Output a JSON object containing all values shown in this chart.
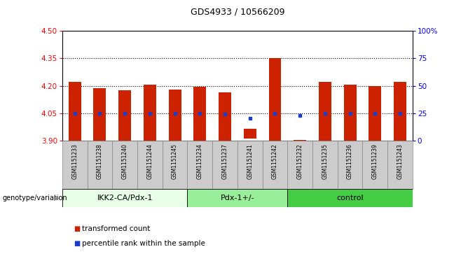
{
  "title": "GDS4933 / 10566209",
  "samples": [
    "GSM1151233",
    "GSM1151238",
    "GSM1151240",
    "GSM1151244",
    "GSM1151245",
    "GSM1151234",
    "GSM1151237",
    "GSM1151241",
    "GSM1151242",
    "GSM1151232",
    "GSM1151235",
    "GSM1151236",
    "GSM1151239",
    "GSM1151243"
  ],
  "bar_bottoms": [
    3.9,
    3.9,
    3.9,
    3.9,
    3.9,
    3.9,
    3.9,
    3.915,
    3.9,
    3.902,
    3.9,
    3.9,
    3.9,
    3.9
  ],
  "bar_tops": [
    4.22,
    4.185,
    4.175,
    4.205,
    4.18,
    4.195,
    4.165,
    3.965,
    4.35,
    3.905,
    4.22,
    4.205,
    4.2,
    4.22
  ],
  "percentile_values": [
    4.05,
    4.05,
    4.05,
    4.05,
    4.05,
    4.05,
    4.048,
    4.025,
    4.05,
    4.038,
    4.05,
    4.05,
    4.05,
    4.05
  ],
  "bar_color": "#cc2200",
  "dot_color": "#1a3dcc",
  "ylim_left": [
    3.9,
    4.5
  ],
  "ylim_right": [
    0,
    100
  ],
  "yticks_left": [
    3.9,
    4.05,
    4.2,
    4.35,
    4.5
  ],
  "yticks_right": [
    0,
    25,
    50,
    75,
    100
  ],
  "ytick_labels_right": [
    "0",
    "25",
    "50",
    "75",
    "100%"
  ],
  "groups": [
    {
      "label": "IKK2-CA/Pdx-1",
      "start": 0,
      "end": 5,
      "color": "#e8ffe8"
    },
    {
      "label": "Pdx-1+/-",
      "start": 5,
      "end": 9,
      "color": "#99ee99"
    },
    {
      "label": "control",
      "start": 9,
      "end": 14,
      "color": "#44cc44"
    }
  ],
  "group_row_label": "genotype/variation",
  "legend_items": [
    {
      "label": "transformed count",
      "color": "#cc2200"
    },
    {
      "label": "percentile rank within the sample",
      "color": "#1a3dcc"
    }
  ],
  "hlines": [
    4.05,
    4.2,
    4.35
  ],
  "background_color": "#ffffff",
  "bar_width": 0.5,
  "sample_box_color": "#cccccc",
  "sample_box_border": "#888888"
}
